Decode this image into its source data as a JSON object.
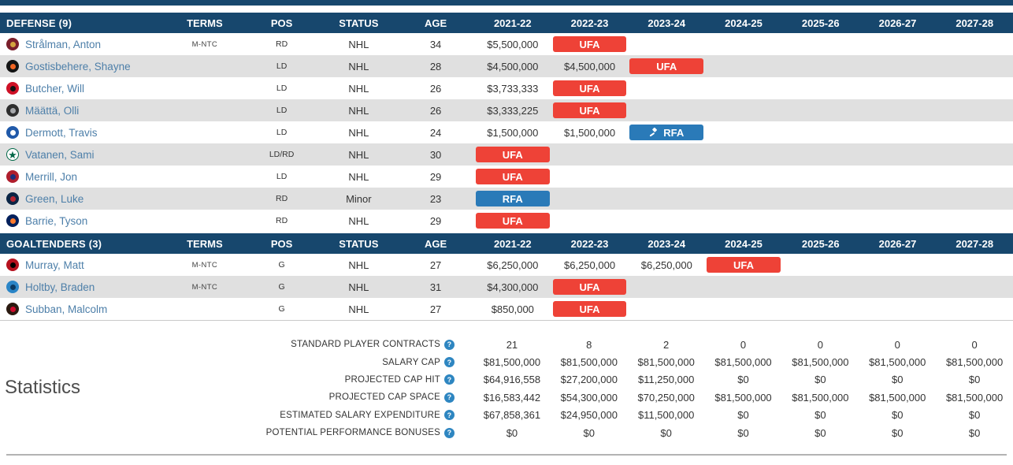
{
  "colors": {
    "header_bg": "#17476d",
    "row_alt_bg": "#e0e0e0",
    "ufa_badge": "#ee4237",
    "rfa_badge": "#2a7ab8",
    "player_link": "#4d7fa9",
    "help_icon": "#2e86c1"
  },
  "table": {
    "column_headers": [
      "TERMS",
      "POS",
      "STATUS",
      "AGE",
      "2021-22",
      "2022-23",
      "2023-24",
      "2024-25",
      "2025-26",
      "2026-27",
      "2027-28"
    ],
    "sections": [
      {
        "title": "DEFENSE (9)",
        "players": [
          {
            "name": "Strålman, Anton",
            "team": "florida-panthers",
            "logo": {
              "bg": "#7a1f2b",
              "dot": "#d3a43e"
            },
            "terms": "M-NTC",
            "pos": "RD",
            "status": "NHL",
            "age": "34",
            "years": [
              {
                "text": "$5,500,000"
              },
              {
                "badge": "UFA",
                "type": "ufa"
              },
              null,
              null,
              null,
              null,
              null
            ]
          },
          {
            "name": "Gostisbehere, Shayne",
            "team": "philadelphia-flyers",
            "logo": {
              "bg": "#141414",
              "dot": "#f26522"
            },
            "terms": "",
            "pos": "LD",
            "status": "NHL",
            "age": "28",
            "years": [
              {
                "text": "$4,500,000"
              },
              {
                "text": "$4,500,000"
              },
              {
                "badge": "UFA",
                "type": "ufa"
              },
              null,
              null,
              null,
              null
            ]
          },
          {
            "name": "Butcher, Will",
            "team": "new-jersey-devils",
            "logo": {
              "bg": "#ce1126",
              "dot": "#111111"
            },
            "terms": "",
            "pos": "LD",
            "status": "NHL",
            "age": "26",
            "years": [
              {
                "text": "$3,733,333"
              },
              {
                "badge": "UFA",
                "type": "ufa"
              },
              null,
              null,
              null,
              null,
              null
            ]
          },
          {
            "name": "Määttä, Olli",
            "team": "los-angeles-kings",
            "logo": {
              "bg": "#2f2f2f",
              "dot": "#a7a9ac"
            },
            "terms": "",
            "pos": "LD",
            "status": "NHL",
            "age": "26",
            "years": [
              {
                "text": "$3,333,225"
              },
              {
                "badge": "UFA",
                "type": "ufa"
              },
              null,
              null,
              null,
              null,
              null
            ]
          },
          {
            "name": "Dermott, Travis",
            "team": "toronto-maple-leafs",
            "logo": {
              "bg": "#2059a9",
              "dot": "#ffffff"
            },
            "terms": "",
            "pos": "LD",
            "status": "NHL",
            "age": "24",
            "years": [
              {
                "text": "$1,500,000"
              },
              {
                "text": "$1,500,000"
              },
              {
                "badge": "RFA",
                "type": "rfa",
                "icon": "gavel"
              },
              null,
              null,
              null,
              null
            ]
          },
          {
            "name": "Vatanen, Sami",
            "team": "dallas-stars",
            "logo": {
              "bg": "#ffffff",
              "border": "#006847",
              "glyph": "★",
              "glyph_color": "#006847"
            },
            "terms": "",
            "pos": "LD/RD",
            "status": "NHL",
            "age": "30",
            "years": [
              {
                "badge": "UFA",
                "type": "ufa"
              },
              null,
              null,
              null,
              null,
              null,
              null
            ]
          },
          {
            "name": "Merrill, Jon",
            "team": "montreal-canadiens",
            "logo": {
              "bg": "#af1e2d",
              "dot": "#1c2f7c"
            },
            "terms": "",
            "pos": "LD",
            "status": "NHL",
            "age": "29",
            "years": [
              {
                "badge": "UFA",
                "type": "ufa"
              },
              null,
              null,
              null,
              null,
              null,
              null
            ]
          },
          {
            "name": "Green, Luke",
            "team": "winnipeg-jets",
            "logo": {
              "bg": "#0b2545",
              "dot": "#b52532"
            },
            "terms": "",
            "pos": "RD",
            "status": "Minor",
            "age": "23",
            "years": [
              {
                "badge": "RFA",
                "type": "rfa"
              },
              null,
              null,
              null,
              null,
              null,
              null
            ]
          },
          {
            "name": "Barrie, Tyson",
            "team": "edmonton-oilers",
            "logo": {
              "bg": "#04205b",
              "dot": "#ff7b2e"
            },
            "terms": "",
            "pos": "RD",
            "status": "NHL",
            "age": "29",
            "years": [
              {
                "badge": "UFA",
                "type": "ufa"
              },
              null,
              null,
              null,
              null,
              null,
              null
            ]
          }
        ]
      },
      {
        "title": "GOALTENDERS (3)",
        "players": [
          {
            "name": "Murray, Matt",
            "team": "ottawa-senators",
            "logo": {
              "bg": "#b6121f",
              "dot": "#000000"
            },
            "terms": "M-NTC",
            "pos": "G",
            "status": "NHL",
            "age": "27",
            "years": [
              {
                "text": "$6,250,000"
              },
              {
                "text": "$6,250,000"
              },
              {
                "text": "$6,250,000"
              },
              {
                "badge": "UFA",
                "type": "ufa"
              },
              null,
              null,
              null
            ]
          },
          {
            "name": "Holtby, Braden",
            "team": "vancouver-canucks",
            "logo": {
              "bg": "#2a85c7",
              "dot": "#0a3a63"
            },
            "terms": "M-NTC",
            "pos": "G",
            "status": "NHL",
            "age": "31",
            "years": [
              {
                "text": "$4,300,000"
              },
              {
                "badge": "UFA",
                "type": "ufa"
              },
              null,
              null,
              null,
              null,
              null
            ]
          },
          {
            "name": "Subban, Malcolm",
            "team": "chicago-blackhawks",
            "logo": {
              "bg": "#2b1a10",
              "dot": "#cf0a2c"
            },
            "terms": "",
            "pos": "G",
            "status": "NHL",
            "age": "27",
            "years": [
              {
                "text": "$850,000"
              },
              {
                "badge": "UFA",
                "type": "ufa"
              },
              null,
              null,
              null,
              null,
              null
            ]
          }
        ]
      }
    ]
  },
  "stats": {
    "heading": "Statistics",
    "help_glyph": "?",
    "rows": [
      {
        "label": "STANDARD PLAYER CONTRACTS",
        "values": [
          "21",
          "8",
          "2",
          "0",
          "0",
          "0",
          "0"
        ]
      },
      {
        "label": "SALARY CAP",
        "values": [
          "$81,500,000",
          "$81,500,000",
          "$81,500,000",
          "$81,500,000",
          "$81,500,000",
          "$81,500,000",
          "$81,500,000"
        ]
      },
      {
        "label": "PROJECTED CAP HIT",
        "values": [
          "$64,916,558",
          "$27,200,000",
          "$11,250,000",
          "$0",
          "$0",
          "$0",
          "$0"
        ]
      },
      {
        "label": "PROJECTED CAP SPACE",
        "values": [
          "$16,583,442",
          "$54,300,000",
          "$70,250,000",
          "$81,500,000",
          "$81,500,000",
          "$81,500,000",
          "$81,500,000"
        ]
      },
      {
        "label": "ESTIMATED SALARY EXPENDITURE",
        "values": [
          "$67,858,361",
          "$24,950,000",
          "$11,500,000",
          "$0",
          "$0",
          "$0",
          "$0"
        ]
      },
      {
        "label": "POTENTIAL PERFORMANCE BONUSES",
        "values": [
          "$0",
          "$0",
          "$0",
          "$0",
          "$0",
          "$0",
          "$0"
        ]
      }
    ]
  }
}
